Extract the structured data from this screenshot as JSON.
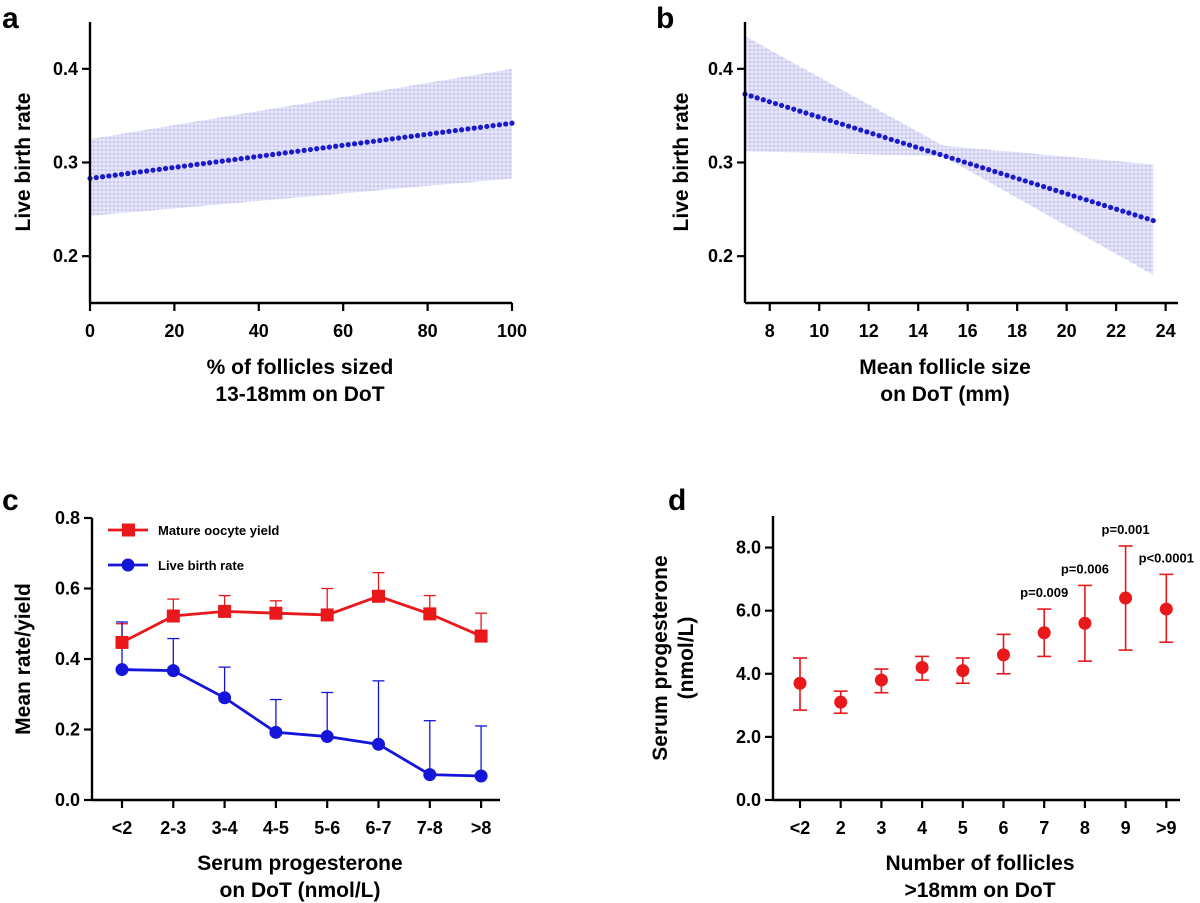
{
  "chart_data": [
    {
      "panel": "a",
      "type": "line",
      "style": "dotted regression line with confidence band",
      "x": [
        0,
        100
      ],
      "y": [
        0.283,
        0.342
      ],
      "ci_lower": [
        0.243,
        0.283
      ],
      "ci_upper": [
        0.325,
        0.4
      ],
      "xlim": [
        0,
        100
      ],
      "ylim": [
        0.15,
        0.45
      ],
      "xticks": [
        0,
        20,
        40,
        60,
        80,
        100
      ],
      "yticks": [
        0.2,
        0.3,
        0.4
      ],
      "ytick_labels": [
        "0.2",
        "0.3",
        "0.4"
      ],
      "xlabel": [
        "% of follicles sized",
        "13-18mm on DoT"
      ],
      "ylabel": "Live birth rate",
      "color": "#1a1ac8",
      "band_color": "#c8c8f0"
    },
    {
      "panel": "b",
      "type": "line",
      "style": "dotted regression line with confidence band",
      "x": [
        7.0,
        23.5
      ],
      "y": [
        0.373,
        0.238
      ],
      "ci_x": [
        7.0,
        15.0,
        23.5
      ],
      "ci_lower": [
        0.312,
        0.307,
        0.18
      ],
      "ci_upper": [
        0.435,
        0.318,
        0.298
      ],
      "xlim": [
        7,
        24.5
      ],
      "ylim": [
        0.15,
        0.45
      ],
      "xticks": [
        8,
        10,
        12,
        14,
        16,
        18,
        20,
        22,
        24
      ],
      "yticks": [
        0.2,
        0.3,
        0.4
      ],
      "ytick_labels": [
        "0.2",
        "0.3",
        "0.4"
      ],
      "xlabel": [
        "Mean follicle size",
        "on DoT (mm)"
      ],
      "ylabel": "Live birth rate",
      "color": "#1a1ac8",
      "band_color": "#c8c8f0"
    },
    {
      "panel": "c",
      "type": "line",
      "categories": [
        "<2",
        "2-3",
        "3-4",
        "4-5",
        "5-6",
        "6-7",
        "7-8",
        ">8"
      ],
      "series": [
        {
          "name": "Mature oocyte yield",
          "marker": "square",
          "color": "#e8181b",
          "values": [
            0.447,
            0.522,
            0.535,
            0.53,
            0.525,
            0.578,
            0.528,
            0.465
          ],
          "error_upper": [
            0.5,
            0.57,
            0.58,
            0.565,
            0.6,
            0.645,
            0.58,
            0.53
          ]
        },
        {
          "name": "Live birth rate",
          "marker": "circle",
          "color": "#1515d8",
          "values": [
            0.37,
            0.367,
            0.29,
            0.192,
            0.18,
            0.158,
            0.072,
            0.068
          ],
          "error_upper": [
            0.505,
            0.458,
            0.377,
            0.285,
            0.305,
            0.338,
            0.225,
            0.21
          ]
        }
      ],
      "ylim": [
        0,
        0.8
      ],
      "yticks": [
        0,
        0.2,
        0.4,
        0.6,
        0.8
      ],
      "ytick_labels": [
        "0.0",
        "0.2",
        "0.4",
        "0.6",
        "0.8"
      ],
      "xlabel": [
        "Serum progesterone",
        "on DoT (nmol/L)"
      ],
      "ylabel": "Mean rate/yield",
      "legend": "top-left"
    },
    {
      "panel": "d",
      "type": "scatter",
      "style": "points with error bars",
      "categories": [
        "<2",
        "2",
        "3",
        "4",
        "5",
        "6",
        "7",
        "8",
        "9",
        ">9"
      ],
      "values": [
        3.7,
        3.1,
        3.8,
        4.2,
        4.1,
        4.6,
        5.3,
        5.6,
        6.4,
        6.05
      ],
      "error_lower": [
        2.85,
        2.75,
        3.4,
        3.8,
        3.7,
        4.0,
        4.55,
        4.4,
        4.75,
        5.0
      ],
      "error_upper": [
        4.5,
        3.45,
        4.15,
        4.55,
        4.5,
        5.25,
        6.05,
        6.8,
        8.05,
        7.15
      ],
      "annotations": [
        "",
        "",
        "",
        "",
        "",
        "",
        "p=0.009",
        "p=0.006",
        "p=0.001",
        "p<0.0001"
      ],
      "ylim": [
        0,
        9
      ],
      "yticks": [
        0,
        2,
        4,
        6,
        8
      ],
      "ytick_labels": [
        "0.0",
        "2.0",
        "4.0",
        "6.0",
        "8.0"
      ],
      "xlabel": [
        "Number of follicles",
        ">18mm on DoT"
      ],
      "ylabel": [
        "Serum progesterone",
        "(nmol/L)"
      ],
      "color": "#e8181b"
    }
  ]
}
